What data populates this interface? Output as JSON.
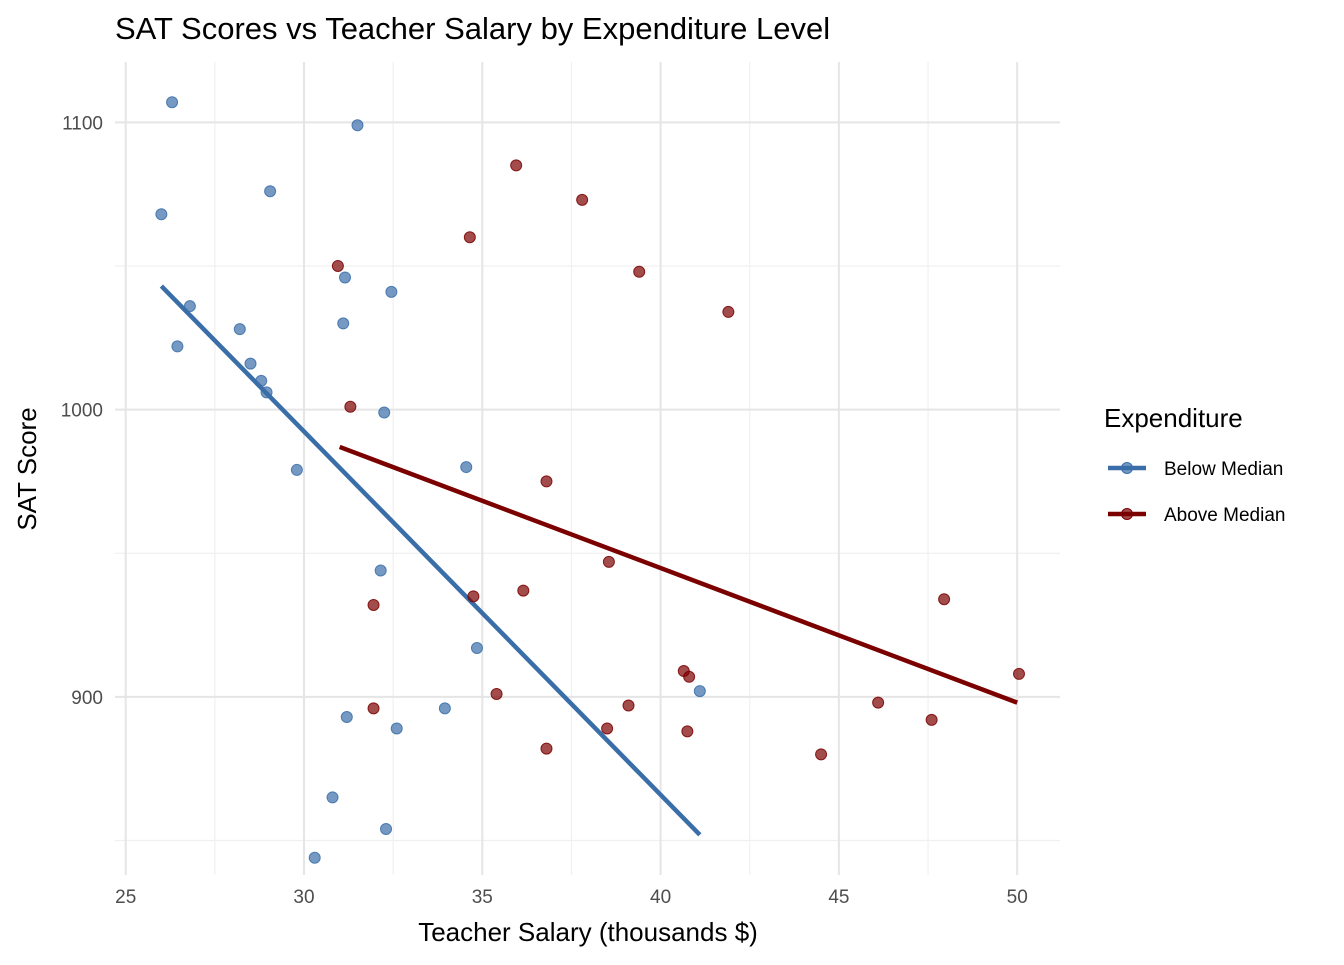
{
  "chart_data": {
    "type": "scatter",
    "title": "SAT Scores vs Teacher Salary by Expenditure Level",
    "xlabel": "Teacher Salary (thousands $)",
    "ylabel": "SAT Score",
    "xlim": [
      24.7,
      51.2
    ],
    "ylim": [
      838,
      1121
    ],
    "xticks": [
      25,
      30,
      35,
      40,
      45,
      50
    ],
    "yticks": [
      900,
      1000,
      1100
    ],
    "grid": true,
    "legend": {
      "title": "Expenditure",
      "placement": "right"
    },
    "series": [
      {
        "name": "Below Median",
        "color": "#3a6ea8",
        "points": [
          {
            "x": 26.3,
            "y": 1107
          },
          {
            "x": 31.5,
            "y": 1099
          },
          {
            "x": 29.05,
            "y": 1076
          },
          {
            "x": 26.0,
            "y": 1068
          },
          {
            "x": 31.15,
            "y": 1046
          },
          {
            "x": 32.45,
            "y": 1041
          },
          {
            "x": 26.8,
            "y": 1036
          },
          {
            "x": 31.1,
            "y": 1030
          },
          {
            "x": 28.2,
            "y": 1028
          },
          {
            "x": 26.45,
            "y": 1022
          },
          {
            "x": 28.5,
            "y": 1016
          },
          {
            "x": 28.8,
            "y": 1010
          },
          {
            "x": 28.95,
            "y": 1006
          },
          {
            "x": 32.25,
            "y": 999
          },
          {
            "x": 29.8,
            "y": 979
          },
          {
            "x": 34.55,
            "y": 980
          },
          {
            "x": 32.15,
            "y": 944
          },
          {
            "x": 34.85,
            "y": 917
          },
          {
            "x": 41.1,
            "y": 902
          },
          {
            "x": 33.95,
            "y": 896
          },
          {
            "x": 31.2,
            "y": 893
          },
          {
            "x": 32.6,
            "y": 889
          },
          {
            "x": 30.8,
            "y": 865
          },
          {
            "x": 32.3,
            "y": 854
          },
          {
            "x": 30.3,
            "y": 844
          }
        ],
        "trend": {
          "x": [
            26.0,
            41.1
          ],
          "y": [
            1043,
            852
          ]
        }
      },
      {
        "name": "Above Median",
        "color": "#7b0000",
        "points": [
          {
            "x": 35.95,
            "y": 1085
          },
          {
            "x": 37.8,
            "y": 1073
          },
          {
            "x": 34.65,
            "y": 1060
          },
          {
            "x": 30.95,
            "y": 1050
          },
          {
            "x": 39.4,
            "y": 1048
          },
          {
            "x": 41.9,
            "y": 1034
          },
          {
            "x": 31.3,
            "y": 1001
          },
          {
            "x": 36.8,
            "y": 975
          },
          {
            "x": 38.55,
            "y": 947
          },
          {
            "x": 36.15,
            "y": 937
          },
          {
            "x": 34.75,
            "y": 935
          },
          {
            "x": 47.95,
            "y": 934
          },
          {
            "x": 31.95,
            "y": 932
          },
          {
            "x": 40.65,
            "y": 909
          },
          {
            "x": 40.8,
            "y": 907
          },
          {
            "x": 50.05,
            "y": 908
          },
          {
            "x": 35.4,
            "y": 901
          },
          {
            "x": 46.1,
            "y": 898
          },
          {
            "x": 39.1,
            "y": 897
          },
          {
            "x": 31.95,
            "y": 896
          },
          {
            "x": 47.6,
            "y": 892
          },
          {
            "x": 38.5,
            "y": 889
          },
          {
            "x": 40.75,
            "y": 888
          },
          {
            "x": 36.8,
            "y": 882
          },
          {
            "x": 44.5,
            "y": 880
          }
        ],
        "trend": {
          "x": [
            31.0,
            50.0
          ],
          "y": [
            987,
            898
          ]
        }
      }
    ]
  }
}
